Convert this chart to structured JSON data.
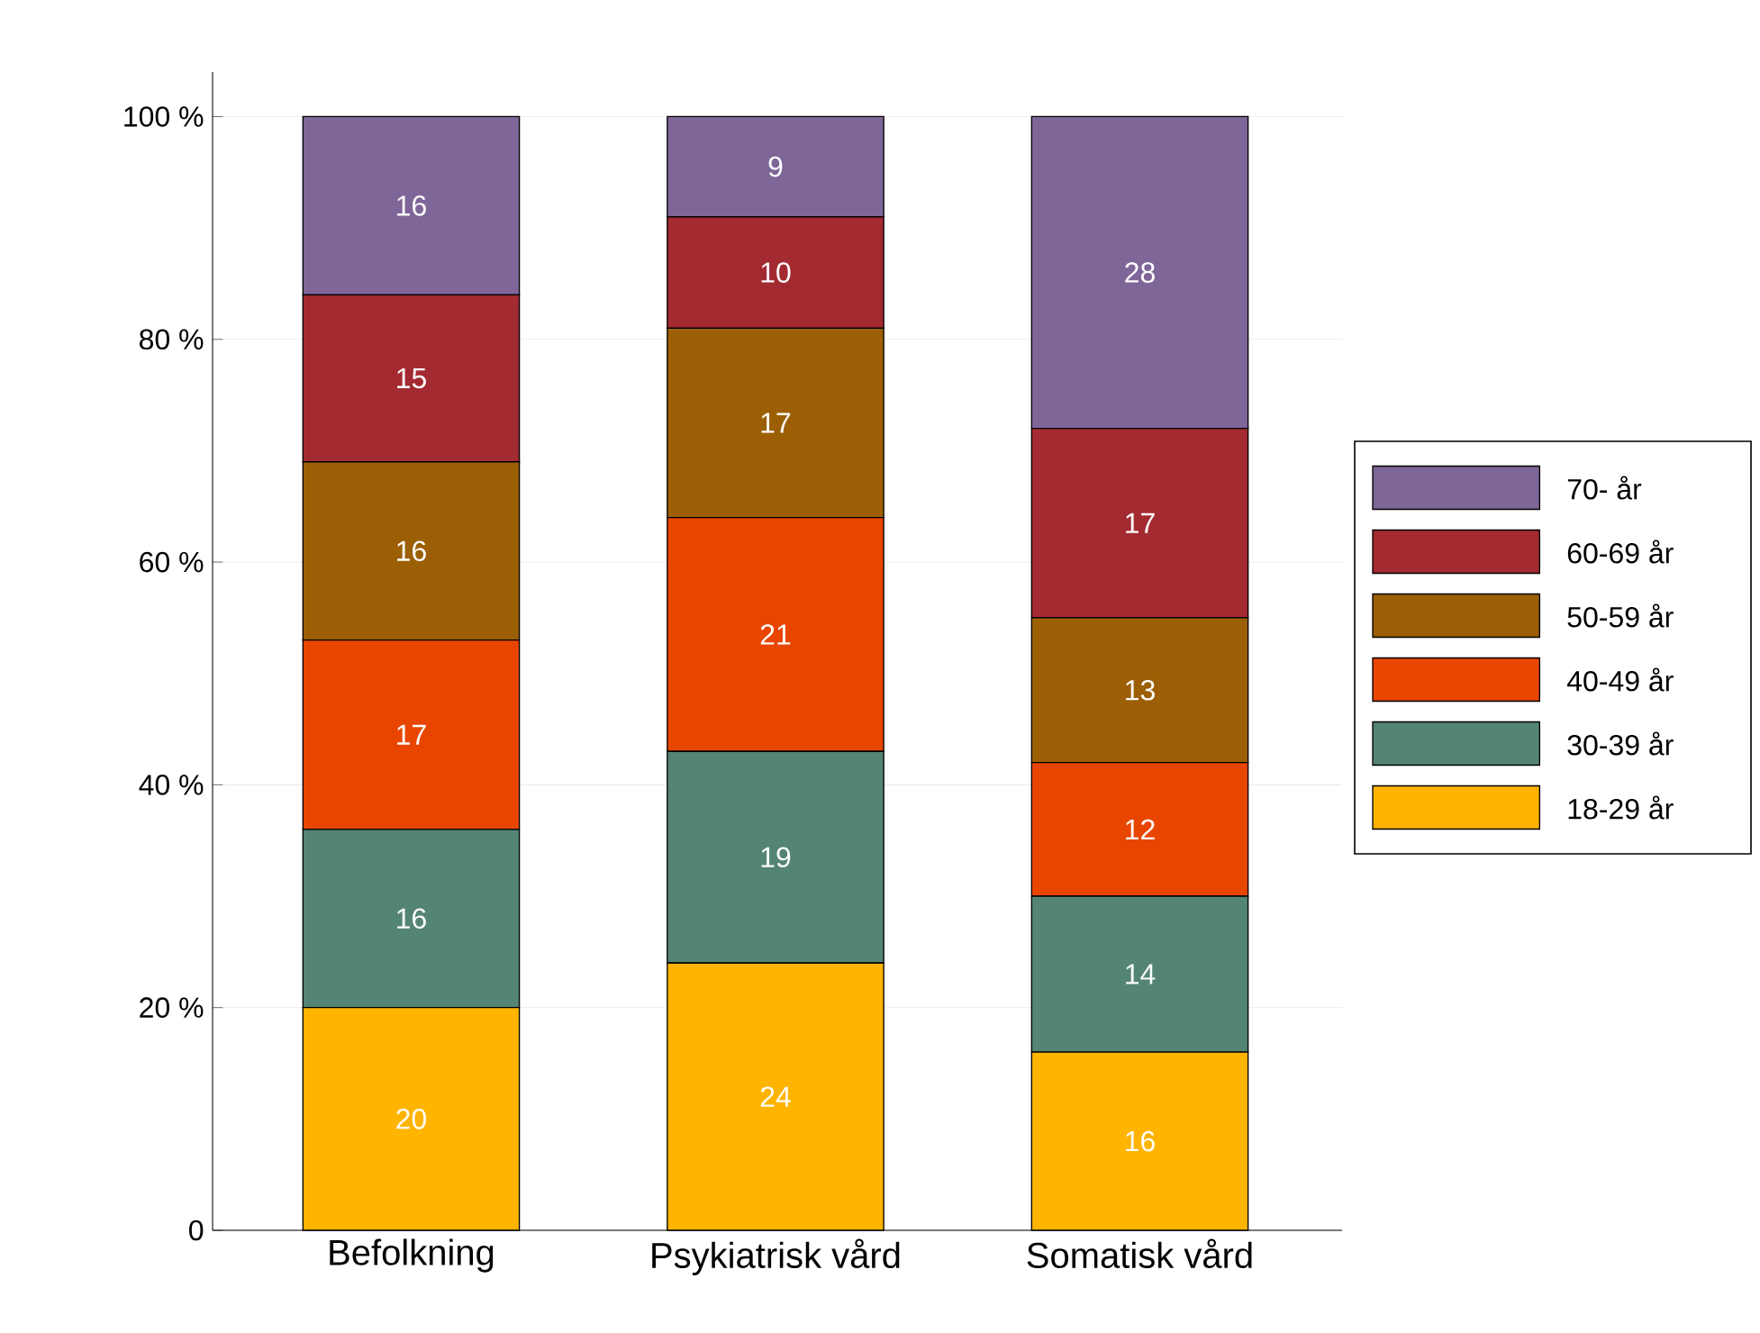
{
  "chart_data": {
    "type": "bar",
    "stacked": true,
    "categories": [
      "Befolkning",
      "Psykiatrisk vård",
      "Somatisk vård"
    ],
    "series": [
      {
        "name": "18-29 år",
        "color": "#ffb400",
        "values": [
          20,
          24,
          16
        ]
      },
      {
        "name": "30-39 år",
        "color": "#548474",
        "values": [
          16,
          19,
          14
        ]
      },
      {
        "name": "40-49 år",
        "color": "#e84600",
        "values": [
          17,
          21,
          12
        ]
      },
      {
        "name": "50-59 år",
        "color": "#9c5f05",
        "values": [
          16,
          17,
          13
        ]
      },
      {
        "name": "60-69 år",
        "color": "#a32a31",
        "values": [
          15,
          10,
          17
        ]
      },
      {
        "name": "70- år",
        "color": "#7f6699",
        "values": [
          16,
          9,
          28
        ]
      }
    ],
    "ylim": [
      0,
      104
    ],
    "yticks": [
      {
        "value": 0,
        "label": "0"
      },
      {
        "value": 20,
        "label": "20 %"
      },
      {
        "value": 40,
        "label": "40 %"
      },
      {
        "value": 60,
        "label": "60 %"
      },
      {
        "value": 80,
        "label": "80 %"
      },
      {
        "value": 100,
        "label": "100 %"
      }
    ],
    "grid": "y",
    "legend": "right",
    "data_labels": true
  }
}
